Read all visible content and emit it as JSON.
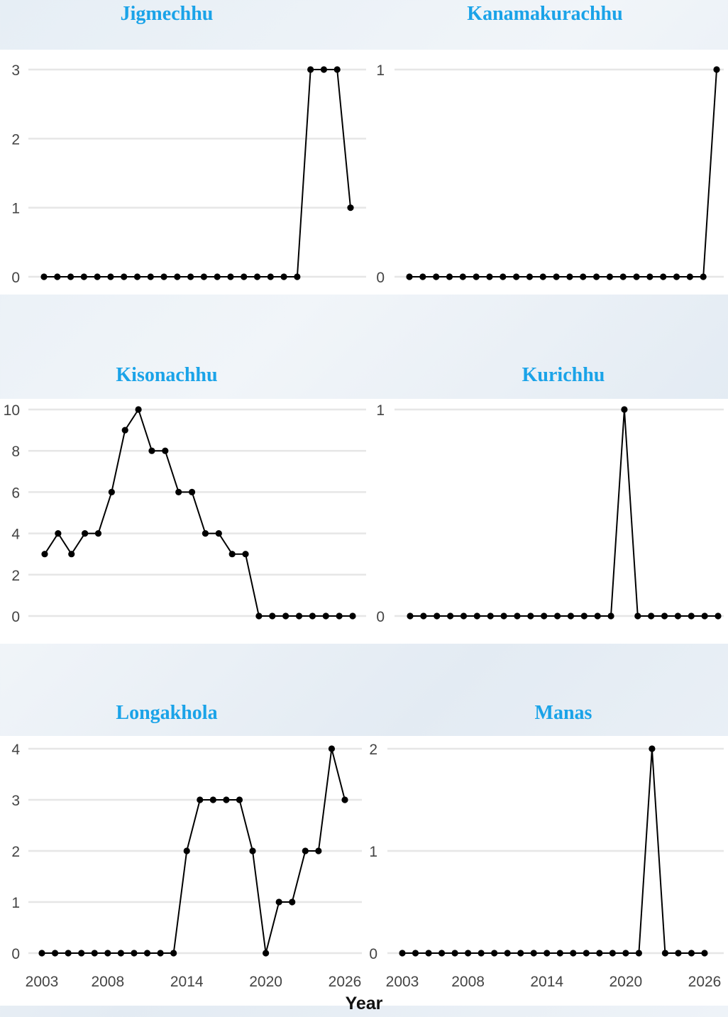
{
  "chart_data": [
    {
      "type": "line",
      "title": "Jigmechhu",
      "x": [
        2003,
        2004,
        2005,
        2006,
        2007,
        2008,
        2009,
        2010,
        2011,
        2012,
        2013,
        2014,
        2015,
        2016,
        2017,
        2018,
        2019,
        2020,
        2021,
        2022,
        2023,
        2024,
        2025,
        2026
      ],
      "values": [
        0,
        0,
        0,
        0,
        0,
        0,
        0,
        0,
        0,
        0,
        0,
        0,
        0,
        0,
        0,
        0,
        0,
        0,
        0,
        0,
        3,
        3,
        3,
        1
      ],
      "yticks": [
        0,
        1,
        2,
        3
      ],
      "ylim": [
        0,
        3
      ],
      "xlim": [
        2003,
        2026
      ],
      "xticks": [],
      "grid": true
    },
    {
      "type": "line",
      "title": "Kanamakurachhu",
      "x": [
        2003,
        2004,
        2005,
        2006,
        2007,
        2008,
        2009,
        2010,
        2011,
        2012,
        2013,
        2014,
        2015,
        2016,
        2017,
        2018,
        2019,
        2020,
        2021,
        2022,
        2023,
        2024,
        2025,
        2026
      ],
      "values": [
        0,
        0,
        0,
        0,
        0,
        0,
        0,
        0,
        0,
        0,
        0,
        0,
        0,
        0,
        0,
        0,
        0,
        0,
        0,
        0,
        0,
        0,
        0,
        1
      ],
      "yticks": [
        0,
        1
      ],
      "ylim": [
        0,
        1
      ],
      "xlim": [
        2003,
        2026
      ],
      "xticks": [],
      "grid": true
    },
    {
      "type": "line",
      "title": "Kisonachhu",
      "x": [
        2003,
        2004,
        2005,
        2006,
        2007,
        2008,
        2009,
        2010,
        2011,
        2012,
        2013,
        2014,
        2015,
        2016,
        2017,
        2018,
        2019,
        2020,
        2021,
        2022,
        2023,
        2024,
        2025,
        2026
      ],
      "values": [
        3,
        4,
        3,
        4,
        4,
        6,
        9,
        10,
        8,
        8,
        6,
        6,
        4,
        4,
        3,
        3,
        0,
        0,
        0,
        0,
        0,
        0,
        0,
        0
      ],
      "yticks": [
        0,
        2,
        4,
        6,
        8,
        10
      ],
      "ylim": [
        0,
        10
      ],
      "xlim": [
        2003,
        2026
      ],
      "xticks": [],
      "grid": true
    },
    {
      "type": "line",
      "title": "Kurichhu",
      "x": [
        2003,
        2004,
        2005,
        2006,
        2007,
        2008,
        2009,
        2010,
        2011,
        2012,
        2013,
        2014,
        2015,
        2016,
        2017,
        2018,
        2019,
        2020,
        2021,
        2022,
        2023,
        2024,
        2025,
        2026
      ],
      "values": [
        0,
        0,
        0,
        0,
        0,
        0,
        0,
        0,
        0,
        0,
        0,
        0,
        0,
        0,
        0,
        0,
        1,
        0,
        0,
        0,
        0,
        0,
        0,
        0
      ],
      "yticks": [
        0,
        1
      ],
      "ylim": [
        0,
        1
      ],
      "xlim": [
        2003,
        2026
      ],
      "xticks": [],
      "grid": true
    },
    {
      "type": "line",
      "title": "Longakhola",
      "x": [
        2003,
        2004,
        2005,
        2006,
        2007,
        2008,
        2009,
        2010,
        2011,
        2012,
        2013,
        2014,
        2015,
        2016,
        2017,
        2018,
        2019,
        2020,
        2021,
        2022,
        2023,
        2024,
        2025,
        2026
      ],
      "values": [
        0,
        0,
        0,
        0,
        0,
        0,
        0,
        0,
        0,
        0,
        0,
        2,
        3,
        3,
        3,
        3,
        2,
        0,
        1,
        1,
        2,
        2,
        4,
        3
      ],
      "yticks": [
        0,
        1,
        2,
        3,
        4
      ],
      "ylim": [
        0,
        4
      ],
      "xlim": [
        2003,
        2026
      ],
      "xticks": [
        2003,
        2008,
        2014,
        2020,
        2026
      ],
      "grid": true
    },
    {
      "type": "line",
      "title": "Manas",
      "x": [
        2003,
        2004,
        2005,
        2006,
        2007,
        2008,
        2009,
        2010,
        2011,
        2012,
        2013,
        2014,
        2015,
        2016,
        2017,
        2018,
        2019,
        2020,
        2021,
        2022,
        2023,
        2024,
        2025,
        2026
      ],
      "values": [
        0,
        0,
        0,
        0,
        0,
        0,
        0,
        0,
        0,
        0,
        0,
        0,
        0,
        0,
        0,
        0,
        0,
        0,
        0,
        2,
        0,
        0,
        0,
        0
      ],
      "yticks": [
        0,
        1,
        2
      ],
      "ylim": [
        0,
        2
      ],
      "xlim": [
        2003,
        2026
      ],
      "xticks": [
        2003,
        2008,
        2014,
        2020,
        2026
      ],
      "grid": true
    }
  ],
  "xlabel": "Year",
  "colors": {
    "title": "#1aa3e8",
    "line": "#000000",
    "grid": "#e6e6e6"
  }
}
